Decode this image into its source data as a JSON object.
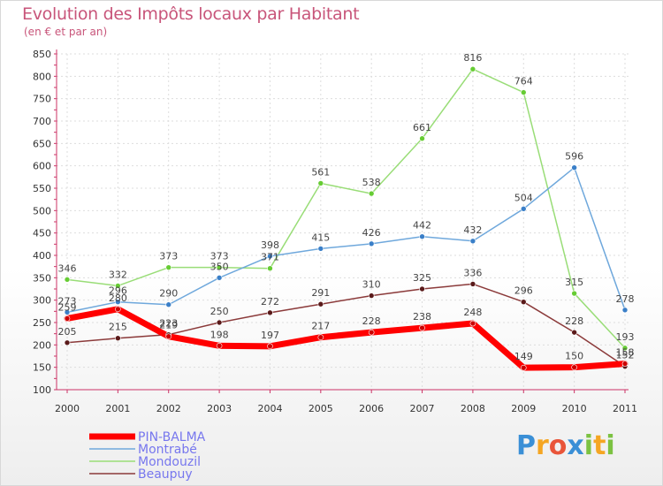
{
  "title": "Evolution des Impôts locaux par Habitant",
  "subtitle": "(en € et par an)",
  "logo": {
    "letters": [
      "P",
      "r",
      "o",
      "x",
      "i",
      "t",
      "i"
    ],
    "colors": [
      "#3a8fd6",
      "#f5a623",
      "#e9553a",
      "#3a8fd6",
      "#7cc242",
      "#f5a623",
      "#7cc242"
    ]
  },
  "chart_data": {
    "type": "line",
    "x": [
      "2000",
      "2001",
      "2002",
      "2003",
      "2004",
      "2005",
      "2006",
      "2007",
      "2008",
      "2009",
      "2010",
      "2011"
    ],
    "ylim": [
      100,
      850
    ],
    "yticks": [
      "100",
      "150",
      "200",
      "250",
      "300",
      "350",
      "400",
      "450",
      "500",
      "550",
      "600",
      "650",
      "700",
      "750",
      "800",
      "850"
    ],
    "grid": true,
    "legend_position": "bottom-left",
    "series": [
      {
        "name": "PIN-BALMA",
        "color": "#ff0000",
        "width": 7,
        "values": [
          259,
          280,
          219,
          198,
          197,
          217,
          228,
          238,
          248,
          149,
          150,
          158
        ],
        "labels": [
          "259",
          "280",
          "219",
          "198",
          "197",
          "217",
          "228",
          "238",
          "248",
          "149",
          "150",
          "158"
        ]
      },
      {
        "name": "Montrabé",
        "color": "#6fa8dc",
        "width": 1.5,
        "values": [
          273,
          296,
          290,
          350,
          398,
          415,
          426,
          442,
          432,
          504,
          596,
          278
        ],
        "labels": [
          "273",
          "296",
          "290",
          "350",
          "398",
          "415",
          "426",
          "442",
          "432",
          "504",
          "596",
          "278"
        ]
      },
      {
        "name": "Mondouzil",
        "color": "#99dd77",
        "width": 1.5,
        "values": [
          346,
          332,
          373,
          373,
          371,
          561,
          538,
          661,
          816,
          764,
          315,
          193
        ],
        "labels": [
          "346",
          "332",
          "373",
          "373",
          "371",
          "561",
          "538",
          "661",
          "816",
          "764",
          "315",
          "193"
        ]
      },
      {
        "name": "Beaupuy",
        "color": "#8b3a3a",
        "width": 1.5,
        "values": [
          205,
          215,
          223,
          250,
          272,
          291,
          310,
          325,
          336,
          296,
          228,
          152
        ],
        "labels": [
          "205",
          "215",
          "223",
          "250",
          "272",
          "291",
          "310",
          "325",
          "336",
          "296",
          "228",
          "152"
        ]
      }
    ],
    "marker_colors": {
      "PIN-BALMA": "#cc0000",
      "Montrabé": "#3a7fc8",
      "Mondouzil": "#66cc33",
      "Beaupuy": "#5a1a1a"
    },
    "legend_text_color": "#7777ee"
  }
}
